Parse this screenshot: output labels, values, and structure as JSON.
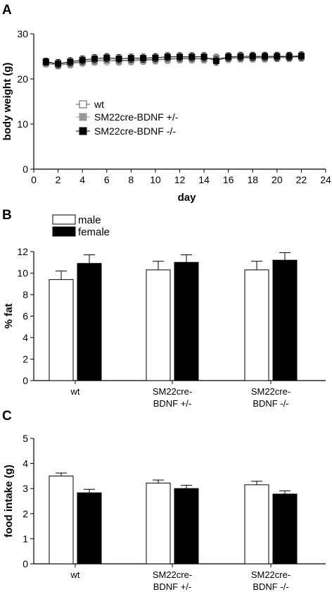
{
  "chart_data": [
    {
      "panel": "A",
      "type": "line",
      "xlabel": "day",
      "ylabel": "body weight (g)",
      "xlim": [
        0,
        24
      ],
      "ylim": [
        0,
        30
      ],
      "xticks": [
        0,
        2,
        4,
        6,
        8,
        10,
        12,
        14,
        16,
        18,
        20,
        22,
        24
      ],
      "yticks": [
        0,
        10,
        20,
        30
      ],
      "grid": false,
      "legend": "center-left",
      "x": [
        1,
        2,
        3,
        4,
        5,
        6,
        7,
        8,
        9,
        10,
        11,
        12,
        13,
        14,
        15,
        16,
        17,
        18,
        19,
        20,
        21,
        22
      ],
      "series": [
        {
          "name": "wt",
          "marker": "open-square",
          "values": [
            23.6,
            23.2,
            23.5,
            23.9,
            24.1,
            24.3,
            24.1,
            24.2,
            24.3,
            24.3,
            24.5,
            24.6,
            24.6,
            24.5,
            24.6,
            24.7,
            24.7,
            24.8,
            24.8,
            24.8,
            24.9,
            24.9
          ],
          "error": [
            0.8,
            0.9,
            0.9,
            0.9,
            0.9,
            0.9,
            0.9,
            0.9,
            0.9,
            0.9,
            0.9,
            0.9,
            0.9,
            0.9,
            0.9,
            0.9,
            0.9,
            0.9,
            0.9,
            0.9,
            0.9,
            0.9
          ]
        },
        {
          "name": "SM22cre-BDNF +/-",
          "marker": "gray-square",
          "values": [
            23.4,
            23.0,
            23.3,
            23.7,
            23.9,
            24.0,
            23.9,
            24.0,
            24.1,
            24.2,
            24.3,
            24.4,
            24.4,
            24.4,
            24.5,
            24.5,
            24.6,
            24.6,
            24.6,
            24.7,
            24.7,
            24.8
          ],
          "error": [
            0.8,
            0.8,
            0.9,
            0.9,
            0.9,
            0.9,
            0.9,
            0.9,
            0.9,
            0.9,
            0.9,
            0.9,
            0.9,
            0.9,
            0.9,
            0.9,
            0.9,
            0.9,
            0.9,
            0.9,
            0.9,
            0.9
          ]
        },
        {
          "name": "SM22cre-BDNF -/-",
          "marker": "filled-square",
          "values": [
            23.8,
            23.4,
            23.8,
            24.2,
            24.5,
            24.7,
            24.5,
            24.6,
            24.6,
            24.7,
            24.9,
            24.9,
            24.9,
            24.9,
            24.0,
            24.9,
            25.0,
            25.0,
            25.0,
            25.0,
            25.0,
            25.1
          ],
          "error": [
            0.8,
            0.9,
            0.9,
            0.9,
            0.9,
            0.9,
            0.9,
            0.9,
            0.9,
            0.9,
            0.9,
            0.9,
            0.9,
            0.9,
            0.9,
            0.9,
            0.9,
            0.9,
            0.9,
            0.9,
            0.9,
            0.9
          ]
        }
      ]
    },
    {
      "panel": "B",
      "type": "bar",
      "xlabel": "",
      "ylabel": "% fat",
      "ylim": [
        0,
        12
      ],
      "yticks": [
        0,
        2,
        4,
        6,
        8,
        10,
        12
      ],
      "grid": false,
      "legend": "top-left",
      "categories": [
        "wt",
        "SM22cre-\nBDNF +/-",
        "SM22cre-\nBDNF -/-"
      ],
      "series": [
        {
          "name": "male",
          "color": "#ffffff",
          "values": [
            9.4,
            10.3,
            10.3
          ],
          "error": [
            0.8,
            0.8,
            0.8
          ]
        },
        {
          "name": "female",
          "color": "#000000",
          "values": [
            10.9,
            11.0,
            11.2
          ],
          "error": [
            0.8,
            0.7,
            0.7
          ]
        }
      ]
    },
    {
      "panel": "C",
      "type": "bar",
      "xlabel": "",
      "ylabel": "food intake (g)",
      "ylim": [
        0,
        5
      ],
      "yticks": [
        0,
        1,
        2,
        3,
        4,
        5
      ],
      "grid": false,
      "legend": "none",
      "categories": [
        "wt",
        "SM22cre-\nBDNF +/-",
        "SM22cre-\nBDNF -/-"
      ],
      "series": [
        {
          "name": "male",
          "color": "#ffffff",
          "values": [
            3.5,
            3.22,
            3.15
          ],
          "error": [
            0.12,
            0.12,
            0.14
          ]
        },
        {
          "name": "female",
          "color": "#000000",
          "values": [
            2.83,
            3.0,
            2.78
          ],
          "error": [
            0.14,
            0.13,
            0.13
          ]
        }
      ]
    }
  ]
}
